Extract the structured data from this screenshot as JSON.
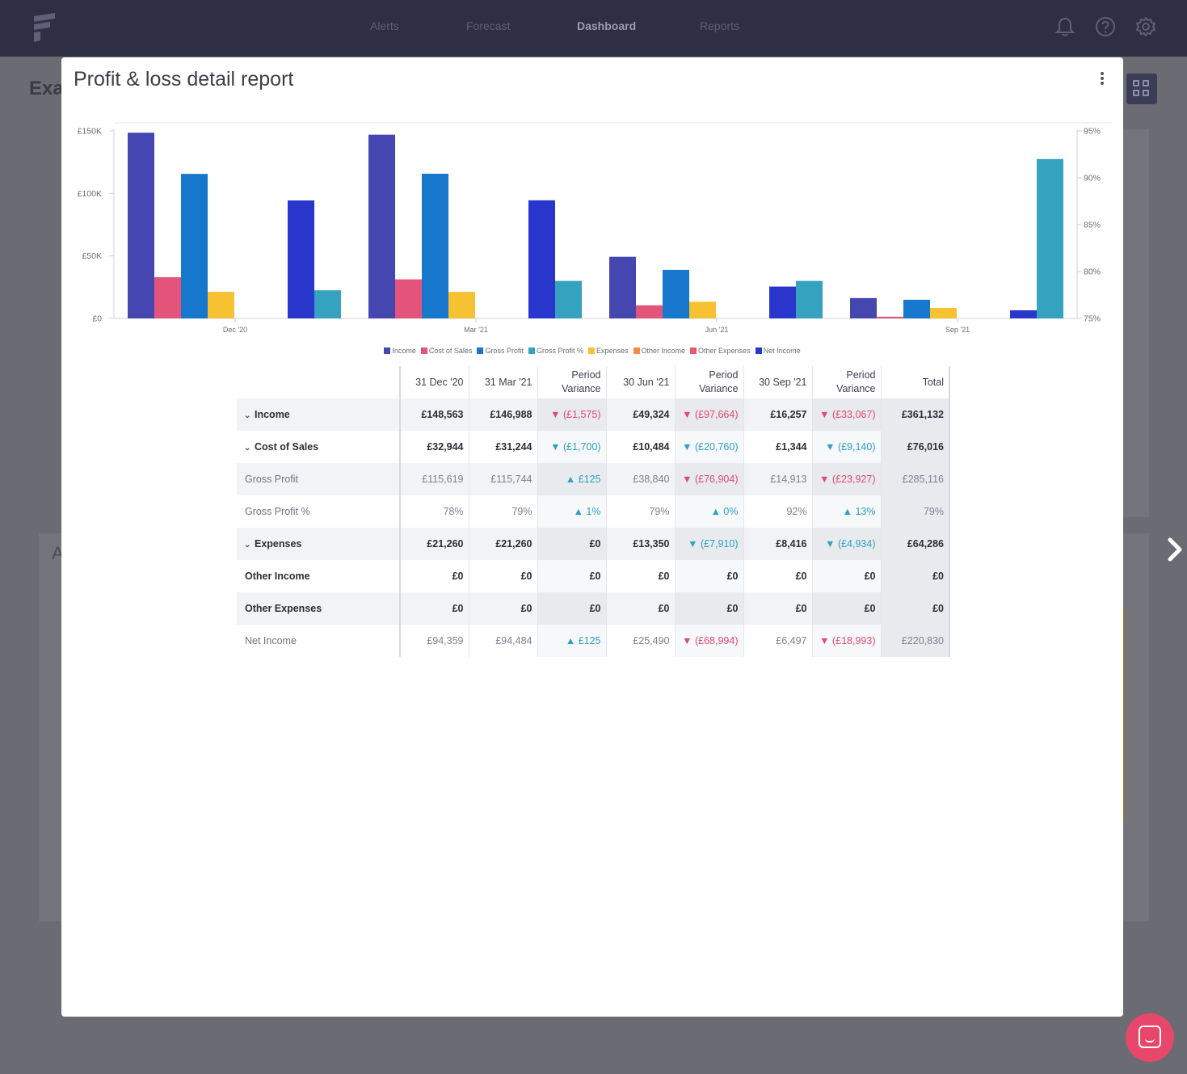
{
  "nav": {
    "items": [
      "Alerts",
      "Forecast",
      "Dashboard",
      "Reports"
    ],
    "active": "Dashboard"
  },
  "background": {
    "page_title_partial": "Exa",
    "card_title_partial": "A"
  },
  "modal": {
    "title": "Profit & loss detail report"
  },
  "colors": {
    "income": "#4646b0",
    "cost_of_sales": "#e4547a",
    "gross_profit": "#1677cc",
    "gross_profit_pct": "#35a2bf",
    "expenses": "#f7c232",
    "other_income": "#f58c45",
    "other_expenses": "#ec5a6a",
    "net_income": "#2936cc",
    "negative": "#e04a6e",
    "positive": "#2ba3c1"
  },
  "chart_data": {
    "type": "bar",
    "categories": [
      "Dec '20",
      "Mar '21",
      "Jun '21",
      "Sep '21"
    ],
    "y_left": {
      "ticks": [
        "£0",
        "£50K",
        "£100K",
        "£150K"
      ],
      "ylim": [
        0,
        150000
      ]
    },
    "y_right": {
      "ticks": [
        "75%",
        "80%",
        "85%",
        "90%",
        "95%"
      ],
      "ylim": [
        75,
        95
      ]
    },
    "grid": false,
    "legend_position": "bottom",
    "series": [
      {
        "name": "Income",
        "color": "#4646b0",
        "axis": "left",
        "values": [
          148563,
          146988,
          49324,
          16257
        ]
      },
      {
        "name": "Cost of Sales",
        "color": "#e4547a",
        "axis": "left",
        "values": [
          32944,
          31244,
          10484,
          1344
        ]
      },
      {
        "name": "Gross Profit",
        "color": "#1677cc",
        "axis": "left",
        "values": [
          115619,
          115744,
          38840,
          14913
        ]
      },
      {
        "name": "Gross Profit %",
        "color": "#35a2bf",
        "axis": "right",
        "values": [
          78,
          79,
          79,
          92
        ]
      },
      {
        "name": "Expenses",
        "color": "#f7c232",
        "axis": "left",
        "values": [
          21260,
          21260,
          13350,
          8416
        ]
      },
      {
        "name": "Other Income",
        "color": "#f58c45",
        "axis": "left",
        "values": [
          0,
          0,
          0,
          0
        ]
      },
      {
        "name": "Other Expenses",
        "color": "#ec5a6a",
        "axis": "left",
        "values": [
          0,
          0,
          0,
          0
        ]
      },
      {
        "name": "Net Income",
        "color": "#2936cc",
        "axis": "left",
        "values": [
          94359,
          94484,
          25490,
          6497
        ]
      }
    ]
  },
  "table": {
    "headers": [
      "",
      "31 Dec '20",
      "31 Mar '21",
      "Period Variance",
      "30 Jun '21",
      "Period Variance",
      "30 Sep '21",
      "Period Variance",
      "Total"
    ],
    "rows": [
      {
        "label": "Income",
        "style": "bold",
        "expand": true,
        "shade": true,
        "cells": [
          {
            "v": "£148,563"
          },
          {
            "v": "£146,988"
          },
          {
            "v": "▼ (£1,575)",
            "s": "neg"
          },
          {
            "v": "£49,324"
          },
          {
            "v": "▼ (£97,664)",
            "s": "neg"
          },
          {
            "v": "£16,257"
          },
          {
            "v": "▼ (£33,067)",
            "s": "neg"
          },
          {
            "v": "£361,132"
          }
        ]
      },
      {
        "label": "Cost of Sales",
        "style": "bold",
        "expand": true,
        "shade": false,
        "cells": [
          {
            "v": "£32,944"
          },
          {
            "v": "£31,244"
          },
          {
            "v": "▼ (£1,700)",
            "s": "pos"
          },
          {
            "v": "£10,484"
          },
          {
            "v": "▼ (£20,760)",
            "s": "pos"
          },
          {
            "v": "£1,344"
          },
          {
            "v": "▼ (£9,140)",
            "s": "pos"
          },
          {
            "v": "£76,016"
          }
        ]
      },
      {
        "label": "Gross Profit",
        "style": "light",
        "expand": false,
        "shade": true,
        "cells": [
          {
            "v": "£115,619"
          },
          {
            "v": "£115,744"
          },
          {
            "v": "▲ £125",
            "s": "pos"
          },
          {
            "v": "£38,840"
          },
          {
            "v": "▼ (£76,904)",
            "s": "neg"
          },
          {
            "v": "£14,913"
          },
          {
            "v": "▼ (£23,927)",
            "s": "neg"
          },
          {
            "v": "£285,116"
          }
        ]
      },
      {
        "label": "Gross Profit %",
        "style": "light",
        "expand": false,
        "shade": false,
        "cells": [
          {
            "v": "78%"
          },
          {
            "v": "79%"
          },
          {
            "v": "▲ 1%",
            "s": "pos"
          },
          {
            "v": "79%"
          },
          {
            "v": "▲ 0%",
            "s": "pos"
          },
          {
            "v": "92%"
          },
          {
            "v": "▲ 13%",
            "s": "pos"
          },
          {
            "v": "79%"
          }
        ]
      },
      {
        "label": "Expenses",
        "style": "bold",
        "expand": true,
        "shade": true,
        "cells": [
          {
            "v": "£21,260"
          },
          {
            "v": "£21,260"
          },
          {
            "v": "£0"
          },
          {
            "v": "£13,350"
          },
          {
            "v": "▼ (£7,910)",
            "s": "pos"
          },
          {
            "v": "£8,416"
          },
          {
            "v": "▼ (£4,934)",
            "s": "pos"
          },
          {
            "v": "£64,286"
          }
        ]
      },
      {
        "label": "Other Income",
        "style": "bold",
        "expand": false,
        "shade": false,
        "cells": [
          {
            "v": "£0"
          },
          {
            "v": "£0"
          },
          {
            "v": "£0"
          },
          {
            "v": "£0"
          },
          {
            "v": "£0"
          },
          {
            "v": "£0"
          },
          {
            "v": "£0"
          },
          {
            "v": "£0"
          }
        ]
      },
      {
        "label": "Other Expenses",
        "style": "bold",
        "expand": false,
        "shade": true,
        "cells": [
          {
            "v": "£0"
          },
          {
            "v": "£0"
          },
          {
            "v": "£0"
          },
          {
            "v": "£0"
          },
          {
            "v": "£0"
          },
          {
            "v": "£0"
          },
          {
            "v": "£0"
          },
          {
            "v": "£0"
          }
        ]
      },
      {
        "label": "Net Income",
        "style": "light",
        "expand": false,
        "shade": false,
        "cells": [
          {
            "v": "£94,359"
          },
          {
            "v": "£94,484"
          },
          {
            "v": "▲ £125",
            "s": "pos"
          },
          {
            "v": "£25,490"
          },
          {
            "v": "▼ (£68,994)",
            "s": "neg"
          },
          {
            "v": "£6,497"
          },
          {
            "v": "▼ (£18,993)",
            "s": "neg"
          },
          {
            "v": "£220,830"
          }
        ]
      }
    ]
  }
}
